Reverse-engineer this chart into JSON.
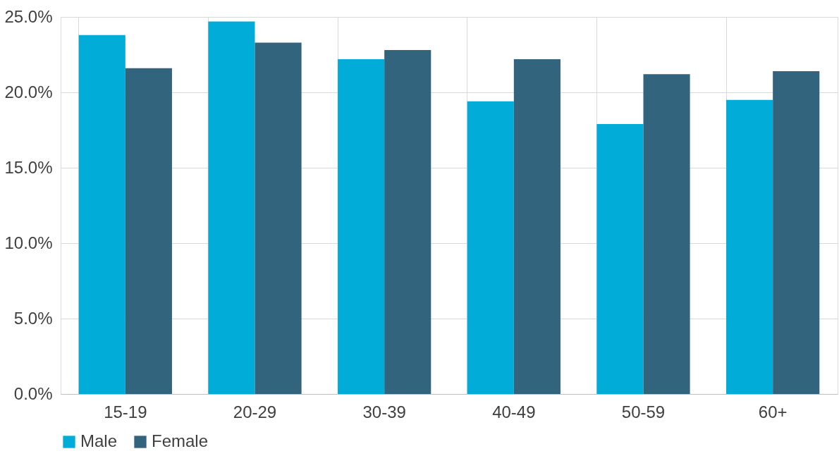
{
  "chart_data": {
    "type": "bar",
    "categories": [
      "15-19",
      "20-29",
      "30-39",
      "40-49",
      "50-59",
      "60+"
    ],
    "series": [
      {
        "name": "Male",
        "color": "#02acd8",
        "values": [
          23.8,
          24.7,
          22.2,
          19.4,
          17.9,
          19.5
        ]
      },
      {
        "name": "Female",
        "color": "#33647e",
        "values": [
          21.6,
          23.3,
          22.8,
          22.2,
          21.2,
          21.4
        ]
      }
    ],
    "ylim": [
      0,
      25
    ],
    "yticks": [
      {
        "value": 0,
        "label": "0.0%"
      },
      {
        "value": 5,
        "label": "5.0%"
      },
      {
        "value": 10,
        "label": "10.0%"
      },
      {
        "value": 15,
        "label": "15.0%"
      },
      {
        "value": 20,
        "label": "20.0%"
      },
      {
        "value": 25,
        "label": "25.0%"
      }
    ],
    "grid": true,
    "legend": "bottom"
  }
}
